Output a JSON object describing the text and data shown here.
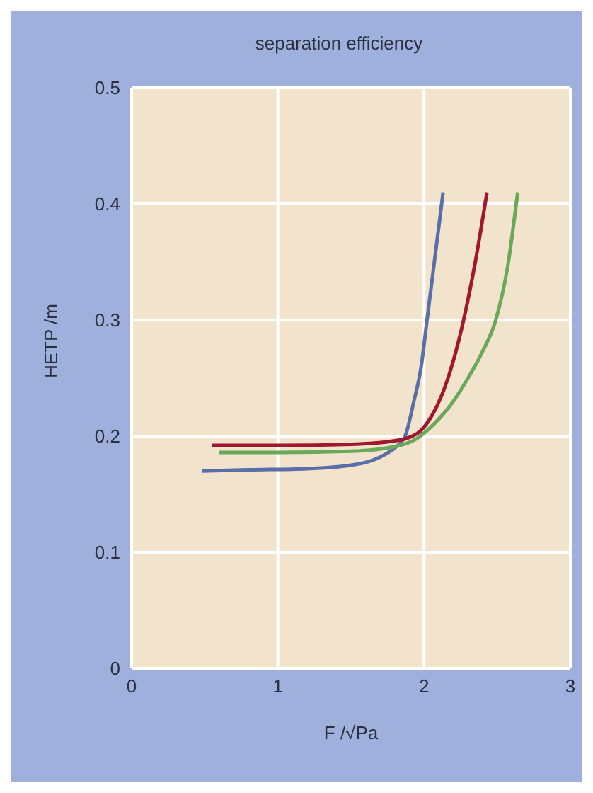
{
  "chart_data": {
    "type": "line",
    "title": "separation efficiency",
    "xlabel": "F /√Pa",
    "ylabel": "HETP /m",
    "xlim": [
      0,
      3
    ],
    "xticks": [
      0,
      1,
      2,
      3
    ],
    "ylim": [
      0,
      0.5
    ],
    "yticks": [
      0,
      0.1,
      0.2,
      0.3,
      0.4,
      0.5
    ],
    "grid": true,
    "marker": "none",
    "line_style": "solid",
    "series": [
      {
        "color": "#5a6fa8",
        "x": [
          0.48,
          0.8,
          1.2,
          1.5,
          1.7,
          1.8,
          1.87,
          1.93,
          1.98,
          2.02,
          2.07,
          2.13
        ],
        "values": [
          0.17,
          0.171,
          0.172,
          0.175,
          0.182,
          0.19,
          0.2,
          0.23,
          0.26,
          0.3,
          0.35,
          0.41
        ]
      },
      {
        "color": "#6aa85a",
        "x": [
          0.6,
          1.0,
          1.5,
          1.8,
          1.95,
          2.08,
          2.2,
          2.3,
          2.4,
          2.49,
          2.57,
          2.64
        ],
        "values": [
          0.186,
          0.186,
          0.187,
          0.191,
          0.198,
          0.212,
          0.23,
          0.25,
          0.273,
          0.3,
          0.345,
          0.41
        ]
      },
      {
        "color": "#a01830",
        "x": [
          0.55,
          1.0,
          1.5,
          1.8,
          1.95,
          2.05,
          2.12,
          2.2,
          2.27,
          2.35,
          2.43
        ],
        "values": [
          0.192,
          0.192,
          0.193,
          0.196,
          0.202,
          0.217,
          0.235,
          0.265,
          0.3,
          0.35,
          0.41
        ]
      }
    ]
  }
}
